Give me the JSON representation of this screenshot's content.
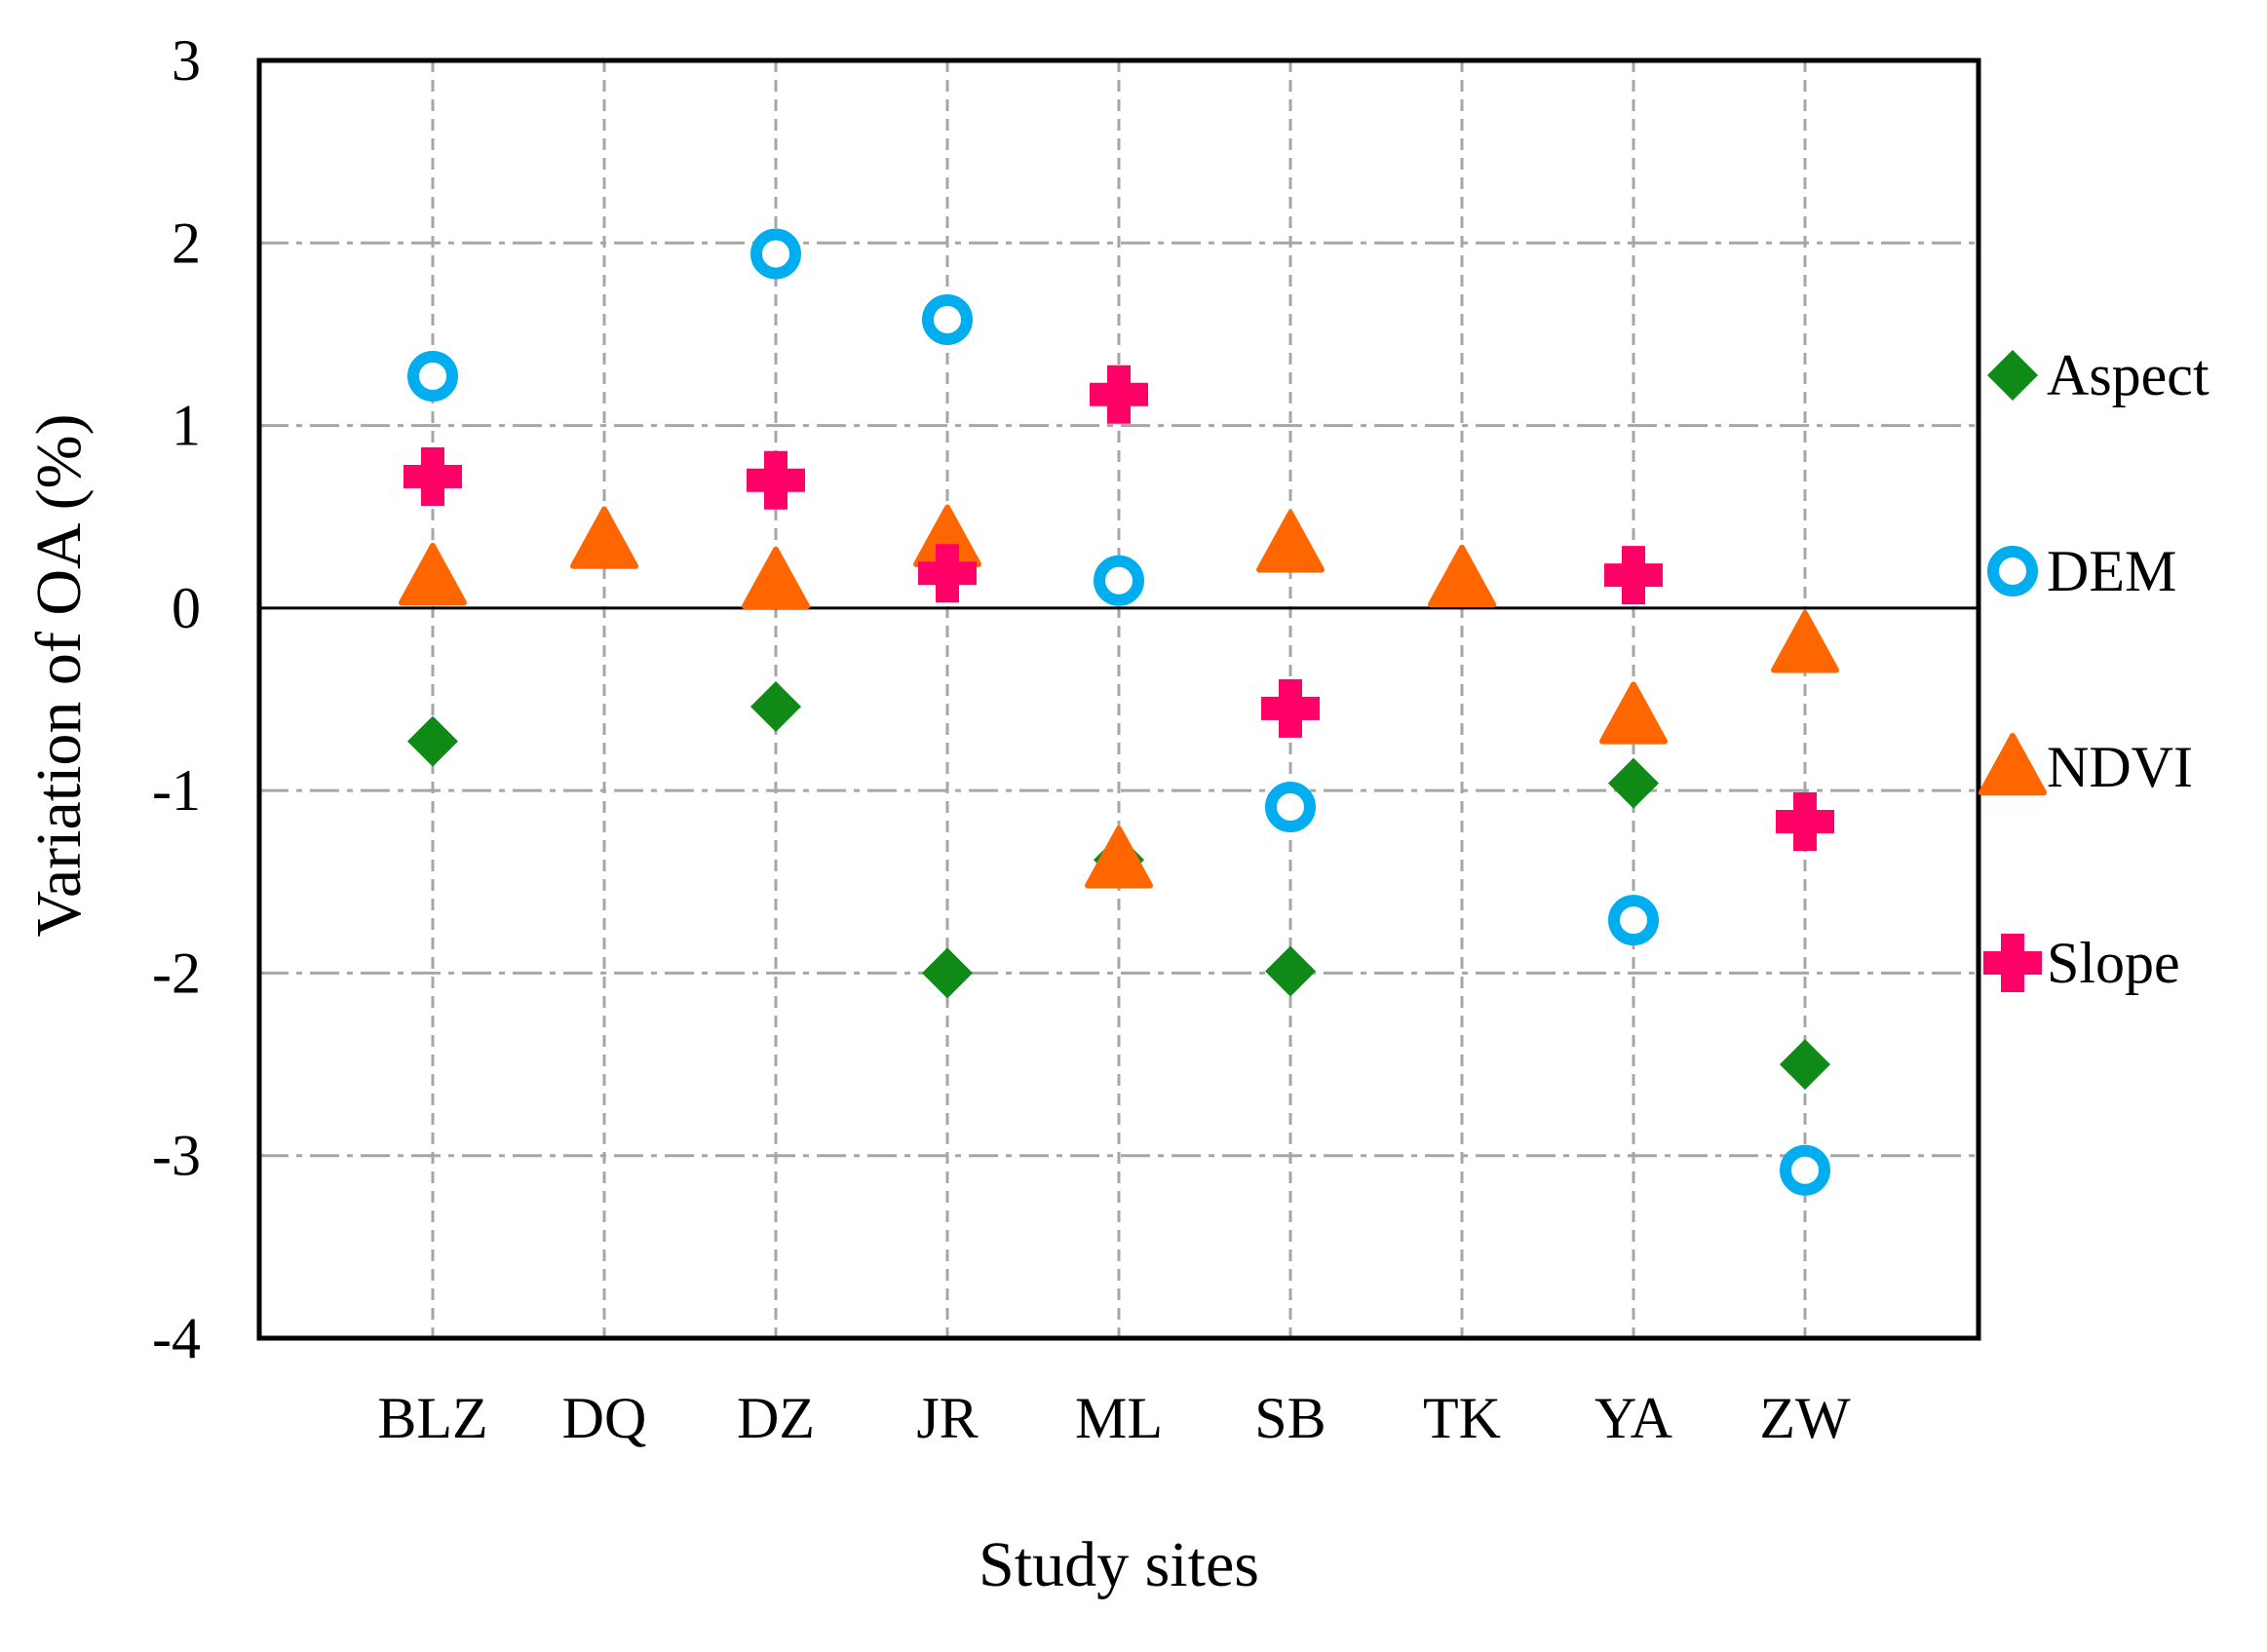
{
  "chart_data": {
    "type": "scatter",
    "title": "",
    "xlabel": "Study sites",
    "ylabel": "Variation of OA (%)",
    "categories": [
      "BLZ",
      "DQ",
      "DZ",
      "JR",
      "ML",
      "SB",
      "TK",
      "YA",
      "ZW"
    ],
    "ylim": [
      -4,
      3
    ],
    "yticks": [
      3,
      2,
      1,
      0,
      -1,
      -2,
      -3,
      -4
    ],
    "grid": true,
    "legend_position": "right",
    "series": [
      {
        "name": "Aspect",
        "marker": "diamond",
        "color": "#0f8a17",
        "values": [
          -0.73,
          null,
          -0.54,
          -2.0,
          -1.38,
          -1.99,
          null,
          -0.96,
          -2.5
        ]
      },
      {
        "name": "DEM",
        "marker": "ring",
        "color": "#00aeef",
        "values": [
          1.27,
          null,
          1.94,
          1.58,
          0.15,
          -1.09,
          null,
          -1.71,
          -3.08
        ]
      },
      {
        "name": "NDVI",
        "marker": "triangle",
        "color": "#ff6600",
        "values": [
          0.17,
          0.37,
          0.15,
          0.38,
          -1.38,
          0.35,
          0.16,
          -0.59,
          -0.2
        ]
      },
      {
        "name": "Slope",
        "marker": "cross",
        "color": "#ff0066",
        "values": [
          0.72,
          null,
          0.7,
          0.19,
          1.17,
          -0.55,
          null,
          0.18,
          -1.17
        ]
      }
    ]
  }
}
